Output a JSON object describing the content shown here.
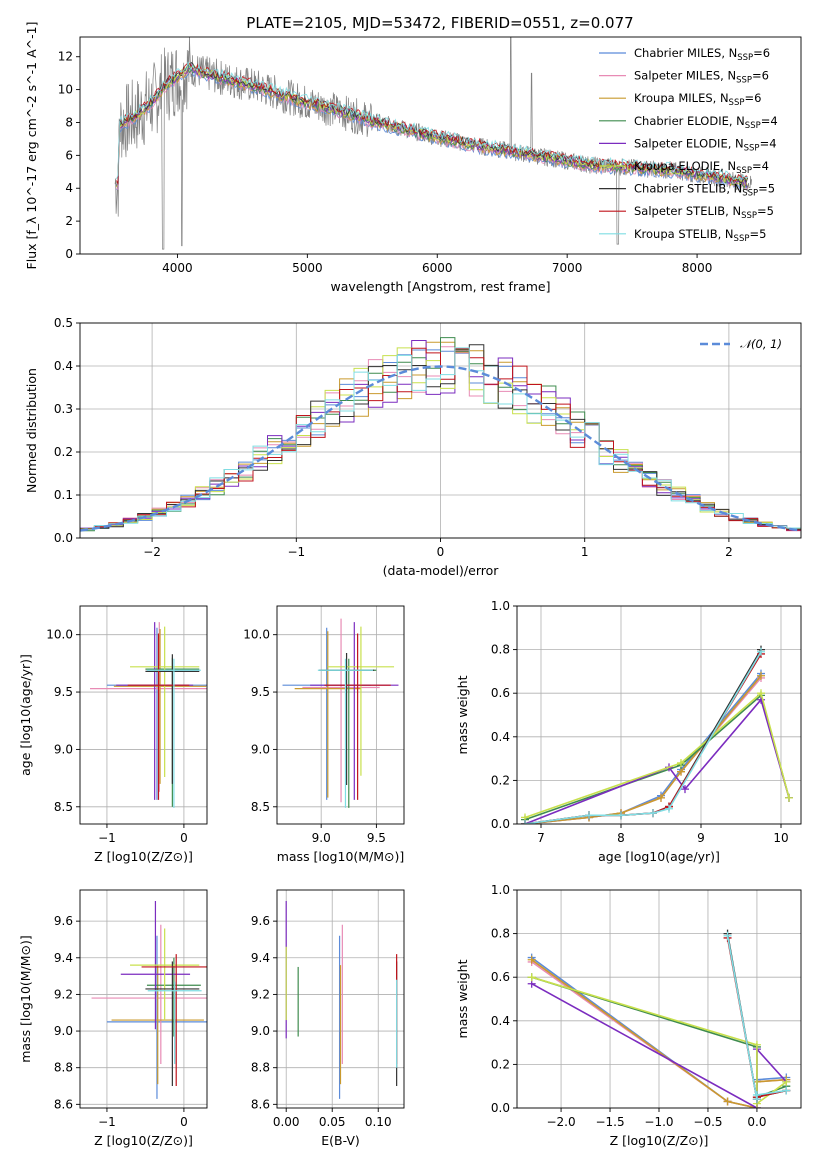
{
  "figure": {
    "title": "PLATE=2105, MJD=53472, FIBERID=0551, z=0.077"
  },
  "colors": [
    "#5b8bd9",
    "#e88bb5",
    "#c99a2e",
    "#3f8c4f",
    "#7b2cbf",
    "#c8e04d",
    "#333333",
    "#c0141c",
    "#7fdde3"
  ],
  "chart_data": [
    {
      "id": "spectrum",
      "type": "line",
      "title": "PLATE=2105, MJD=53472, FIBERID=0551, z=0.077",
      "xlabel": "wavelength [Angstrom, rest frame]",
      "ylabel": "Flux [f_λ 10^-17 erg cm^-2 s^-1 A^-1]",
      "xlim": [
        3250,
        8800
      ],
      "ylim": [
        0,
        13.2
      ],
      "xticks": [
        4000,
        5000,
        6000,
        7000,
        8000
      ],
      "yticks": [
        0,
        2,
        4,
        6,
        8,
        10,
        12
      ],
      "grid": false,
      "legend_position": "top-right",
      "legend": [
        {
          "name": "Chabrier MILES",
          "nssp": "6"
        },
        {
          "name": "Salpeter MILES",
          "nssp": "6"
        },
        {
          "name": "Kroupa MILES",
          "nssp": "6"
        },
        {
          "name": "Chabrier ELODIE",
          "nssp": "4"
        },
        {
          "name": "Salpeter ELODIE",
          "nssp": "4"
        },
        {
          "name": "Kroupa ELODIE",
          "nssp": "4"
        },
        {
          "name": "Chabrier STELIB",
          "nssp": "5"
        },
        {
          "name": "Salpeter STELIB",
          "nssp": "5"
        },
        {
          "name": "Kroupa STELIB",
          "nssp": "5"
        }
      ],
      "continuum": [
        [
          3550,
          7.8
        ],
        [
          3700,
          8.5
        ],
        [
          3800,
          9.2
        ],
        [
          3900,
          10.2
        ],
        [
          4000,
          10.8
        ],
        [
          4100,
          11.3
        ],
        [
          4200,
          11.0
        ],
        [
          4400,
          10.6
        ],
        [
          4600,
          10.2
        ],
        [
          4800,
          9.7
        ],
        [
          5000,
          9.2
        ],
        [
          5200,
          8.8
        ],
        [
          5500,
          8.1
        ],
        [
          5800,
          7.5
        ],
        [
          6000,
          7.1
        ],
        [
          6300,
          6.6
        ],
        [
          6600,
          6.2
        ],
        [
          6900,
          5.8
        ],
        [
          7200,
          5.4
        ],
        [
          7400,
          5.3
        ],
        [
          7800,
          5.1
        ],
        [
          8200,
          4.6
        ],
        [
          8400,
          4.3
        ]
      ]
    },
    {
      "id": "residuals",
      "type": "line",
      "xlabel": "(data-model)/error",
      "ylabel": "Normed distribution",
      "xlim": [
        -2.5,
        2.5
      ],
      "ylim": [
        0,
        0.5
      ],
      "xticks": [
        -2,
        -1,
        0,
        1,
        2
      ],
      "yticks": [
        0.0,
        0.1,
        0.2,
        0.3,
        0.4,
        0.5
      ],
      "grid": true,
      "legend_position": "top-right",
      "legend": [
        {
          "name": "𝒩(0, 1)"
        }
      ]
    },
    {
      "id": "age-vs-z",
      "type": "scatter",
      "xlabel": "Z [log10(Z/Z⊙)]",
      "ylabel": "age  [log10(age/yr)]",
      "xlim": [
        -1.35,
        0.3
      ],
      "ylim": [
        8.35,
        10.25
      ],
      "xticks": [
        -1,
        0
      ],
      "yticks": [
        8.5,
        9.0,
        9.5,
        10.0
      ],
      "grid": true,
      "points": [
        {
          "x": -0.35,
          "y": 9.56,
          "xerr": 0.65,
          "yerr_lo": 1.0,
          "yerr_hi": 0.5
        },
        {
          "x": -0.32,
          "y": 9.53,
          "xerr": 0.9,
          "yerr_lo": 0.9,
          "yerr_hi": 0.58
        },
        {
          "x": -0.31,
          "y": 9.55,
          "xerr": 0.6,
          "yerr_lo": 0.85,
          "yerr_hi": 0.5
        },
        {
          "x": -0.15,
          "y": 9.7,
          "xerr": 0.35,
          "yerr_lo": 1.2,
          "yerr_hi": 0.1
        },
        {
          "x": -0.38,
          "y": 9.56,
          "xerr": 0.5,
          "yerr_lo": 1.0,
          "yerr_hi": 0.55
        },
        {
          "x": -0.25,
          "y": 9.72,
          "xerr": 0.45,
          "yerr_lo": 0.96,
          "yerr_hi": 0.35
        },
        {
          "x": -0.15,
          "y": 9.68,
          "xerr": 0.35,
          "yerr_lo": 0.98,
          "yerr_hi": 0.15
        },
        {
          "x": -0.33,
          "y": 9.56,
          "xerr": 0.4,
          "yerr_lo": 1.0,
          "yerr_hi": 0.45
        },
        {
          "x": -0.13,
          "y": 9.69,
          "xerr": 0.35,
          "yerr_lo": 1.2,
          "yerr_hi": 0.1
        }
      ]
    },
    {
      "id": "age-vs-mass",
      "type": "scatter",
      "xlabel": "mass [log10(M/M⊙)]",
      "ylabel": "",
      "xlim": [
        8.6,
        9.75
      ],
      "ylim": [
        8.35,
        10.25
      ],
      "xticks": [
        9.0,
        9.5
      ],
      "yticks": [
        8.5,
        9.0,
        9.5,
        10.0
      ],
      "grid": true,
      "points": [
        {
          "x": 9.05,
          "y": 9.56,
          "xerr": 0.4,
          "yerr_lo": 1.0,
          "yerr_hi": 0.5
        },
        {
          "x": 9.18,
          "y": 9.54,
          "xerr": 0.35,
          "yerr_lo": 1.0,
          "yerr_hi": 0.6
        },
        {
          "x": 9.06,
          "y": 9.53,
          "xerr": 0.3,
          "yerr_lo": 0.95,
          "yerr_hi": 0.5
        },
        {
          "x": 9.25,
          "y": 9.69,
          "xerr": 0.25,
          "yerr_lo": 1.2,
          "yerr_hi": 0.1
        },
        {
          "x": 9.3,
          "y": 9.56,
          "xerr": 0.4,
          "yerr_lo": 1.0,
          "yerr_hi": 0.55
        },
        {
          "x": 9.36,
          "y": 9.72,
          "xerr": 0.3,
          "yerr_lo": 0.95,
          "yerr_hi": 0.35
        },
        {
          "x": 9.23,
          "y": 9.69,
          "xerr": 0.25,
          "yerr_lo": 1.0,
          "yerr_hi": 0.15
        },
        {
          "x": 9.33,
          "y": 9.56,
          "xerr": 0.3,
          "yerr_lo": 1.0,
          "yerr_hi": 0.45
        },
        {
          "x": 9.22,
          "y": 9.69,
          "xerr": 0.25,
          "yerr_lo": 1.2,
          "yerr_hi": 0.1
        }
      ]
    },
    {
      "id": "weight-vs-age",
      "type": "line",
      "xlabel": "age  [log10(age/yr)]",
      "ylabel": "mass weight",
      "xlim": [
        6.7,
        10.25
      ],
      "ylim": [
        0,
        1.0
      ],
      "xticks": [
        7,
        8,
        9,
        10
      ],
      "yticks": [
        0.0,
        0.2,
        0.4,
        0.6,
        0.8,
        1.0
      ],
      "grid": true,
      "series": [
        {
          "x": [
            6.8,
            7.6,
            8.0,
            8.5,
            8.75,
            9.75
          ],
          "y": [
            0.0,
            0.03,
            0.05,
            0.13,
            0.25,
            0.69
          ]
        },
        {
          "x": [
            6.8,
            7.6,
            8.0,
            8.5,
            8.75,
            9.75
          ],
          "y": [
            0.0,
            0.03,
            0.05,
            0.12,
            0.24,
            0.67
          ]
        },
        {
          "x": [
            6.8,
            7.6,
            8.0,
            8.5,
            8.75,
            9.75
          ],
          "y": [
            0.0,
            0.03,
            0.05,
            0.12,
            0.24,
            0.68
          ]
        },
        {
          "x": [
            6.8,
            8.75,
            9.75,
            10.1
          ],
          "y": [
            0.02,
            0.27,
            0.59,
            0.12
          ]
        },
        {
          "x": [
            6.8,
            8.6,
            8.8,
            9.75,
            10.1
          ],
          "y": [
            0.0,
            0.26,
            0.16,
            0.57,
            0.12
          ]
        },
        {
          "x": [
            6.8,
            8.75,
            9.75,
            10.1
          ],
          "y": [
            0.03,
            0.28,
            0.6,
            0.12
          ]
        },
        {
          "x": [
            6.8,
            7.6,
            8.0,
            8.4,
            8.6,
            9.75
          ],
          "y": [
            0.0,
            0.04,
            0.04,
            0.05,
            0.08,
            0.8
          ]
        },
        {
          "x": [
            6.8,
            7.6,
            8.0,
            8.4,
            8.6,
            9.75
          ],
          "y": [
            0.0,
            0.04,
            0.04,
            0.05,
            0.08,
            0.78
          ]
        },
        {
          "x": [
            6.8,
            7.6,
            8.0,
            8.4,
            8.6,
            9.75
          ],
          "y": [
            0.0,
            0.04,
            0.04,
            0.05,
            0.07,
            0.79
          ]
        }
      ]
    },
    {
      "id": "mass-vs-z",
      "type": "scatter",
      "xlabel": "Z [log10(Z/Z⊙)]",
      "ylabel": "mass [log10(M/M⊙)]",
      "xlim": [
        -1.35,
        0.3
      ],
      "ylim": [
        8.58,
        9.77
      ],
      "xticks": [
        -1,
        0
      ],
      "yticks": [
        8.6,
        8.8,
        9.0,
        9.2,
        9.4,
        9.6
      ],
      "grid": true,
      "points": [
        {
          "x": -0.35,
          "y": 9.05,
          "xerr": 0.65,
          "yerr_lo": 0.42,
          "yerr_hi": 0.47
        },
        {
          "x": -0.3,
          "y": 9.18,
          "xerr": 0.9,
          "yerr_lo": 0.36,
          "yerr_hi": 0.4
        },
        {
          "x": -0.34,
          "y": 9.06,
          "xerr": 0.6,
          "yerr_lo": 0.35,
          "yerr_hi": 0.3
        },
        {
          "x": -0.13,
          "y": 9.25,
          "xerr": 0.35,
          "yerr_lo": 0.28,
          "yerr_hi": 0.15
        },
        {
          "x": -0.37,
          "y": 9.31,
          "xerr": 0.45,
          "yerr_lo": 0.3,
          "yerr_hi": 0.4
        },
        {
          "x": -0.25,
          "y": 9.36,
          "xerr": 0.45,
          "yerr_lo": 0.3,
          "yerr_hi": 0.2
        },
        {
          "x": -0.15,
          "y": 9.23,
          "xerr": 0.35,
          "yerr_lo": 0.53,
          "yerr_hi": 0.15
        },
        {
          "x": -0.1,
          "y": 9.35,
          "xerr": 0.45,
          "yerr_lo": 0.65,
          "yerr_hi": 0.07
        },
        {
          "x": -0.12,
          "y": 9.22,
          "xerr": 0.35,
          "yerr_lo": 0.4,
          "yerr_hi": 0.05
        }
      ]
    },
    {
      "id": "mass-vs-ebv",
      "type": "scatter",
      "xlabel": "E(B-V)",
      "ylabel": "",
      "xlim": [
        -0.01,
        0.128
      ],
      "ylim": [
        8.58,
        9.77
      ],
      "xticks": [
        0.0,
        0.05,
        0.1
      ],
      "yticks": [
        8.6,
        8.8,
        9.0,
        9.2,
        9.4,
        9.6
      ],
      "grid": true,
      "points": [
        {
          "x": 0.058,
          "y": 9.05,
          "xerr": 0,
          "yerr_lo": 0.42,
          "yerr_hi": 0.47
        },
        {
          "x": 0.061,
          "y": 9.18,
          "xerr": 0,
          "yerr_lo": 0.36,
          "yerr_hi": 0.4
        },
        {
          "x": 0.059,
          "y": 9.06,
          "xerr": 0,
          "yerr_lo": 0.35,
          "yerr_hi": 0.3
        },
        {
          "x": 0.013,
          "y": 9.25,
          "xerr": 0,
          "yerr_lo": 0.28,
          "yerr_hi": 0.1
        },
        {
          "x": 0.0,
          "y": 9.31,
          "xerr": 0,
          "yerr_lo": 0.35,
          "yerr_hi": 0.4
        },
        {
          "x": 0.0,
          "y": 9.36,
          "xerr": 0,
          "yerr_lo": 0.3,
          "yerr_hi": 0.1
        },
        {
          "x": 0.12,
          "y": 9.23,
          "xerr": 0,
          "yerr_lo": 0.53,
          "yerr_hi": 0.15
        },
        {
          "x": 0.12,
          "y": 9.35,
          "xerr": 0,
          "yerr_lo": 0.53,
          "yerr_hi": 0.07
        },
        {
          "x": 0.12,
          "y": 9.0,
          "xerr": 0,
          "yerr_lo": 0.2,
          "yerr_hi": 0.28
        }
      ]
    },
    {
      "id": "weight-vs-z",
      "type": "line",
      "xlabel": "Z [log10(Z/Z⊙)]",
      "ylabel": "mass weight",
      "xlim": [
        -2.45,
        0.45
      ],
      "ylim": [
        0,
        1.0
      ],
      "xticks": [
        -2.0,
        -1.5,
        -1.0,
        -0.5,
        0.0
      ],
      "yticks": [
        0.0,
        0.2,
        0.4,
        0.6,
        0.8,
        1.0
      ],
      "grid": true,
      "series": [
        {
          "x": [
            -2.3,
            -0.3,
            0.0,
            0.0,
            0.3
          ],
          "y": [
            0.69,
            0.03,
            0.0,
            0.13,
            0.14
          ]
        },
        {
          "x": [
            -2.3,
            -0.3,
            0.0,
            0.0,
            0.3
          ],
          "y": [
            0.67,
            0.03,
            0.0,
            0.12,
            0.13
          ]
        },
        {
          "x": [
            -2.3,
            -0.3,
            0.0,
            0.0,
            0.3
          ],
          "y": [
            0.68,
            0.03,
            0.0,
            0.12,
            0.13
          ]
        },
        {
          "x": [
            -2.3,
            0.0,
            0.0,
            0.3
          ],
          "y": [
            0.6,
            0.28,
            0.05,
            0.1
          ]
        },
        {
          "x": [
            -2.3,
            0.0,
            0.0,
            0.3
          ],
          "y": [
            0.57,
            0.0,
            0.27,
            0.12
          ]
        },
        {
          "x": [
            -2.3,
            0.0,
            0.0,
            0.3
          ],
          "y": [
            0.6,
            0.29,
            0.02,
            0.12
          ]
        },
        {
          "x": [
            -0.3,
            0.0,
            0.0,
            0.3
          ],
          "y": [
            0.8,
            0.04,
            0.05,
            0.08
          ]
        },
        {
          "x": [
            -0.3,
            0.0,
            0.0,
            0.3
          ],
          "y": [
            0.78,
            0.04,
            0.05,
            0.08
          ]
        },
        {
          "x": [
            -0.3,
            0.0,
            0.0,
            0.3
          ],
          "y": [
            0.79,
            0.04,
            0.06,
            0.08
          ]
        }
      ]
    }
  ]
}
